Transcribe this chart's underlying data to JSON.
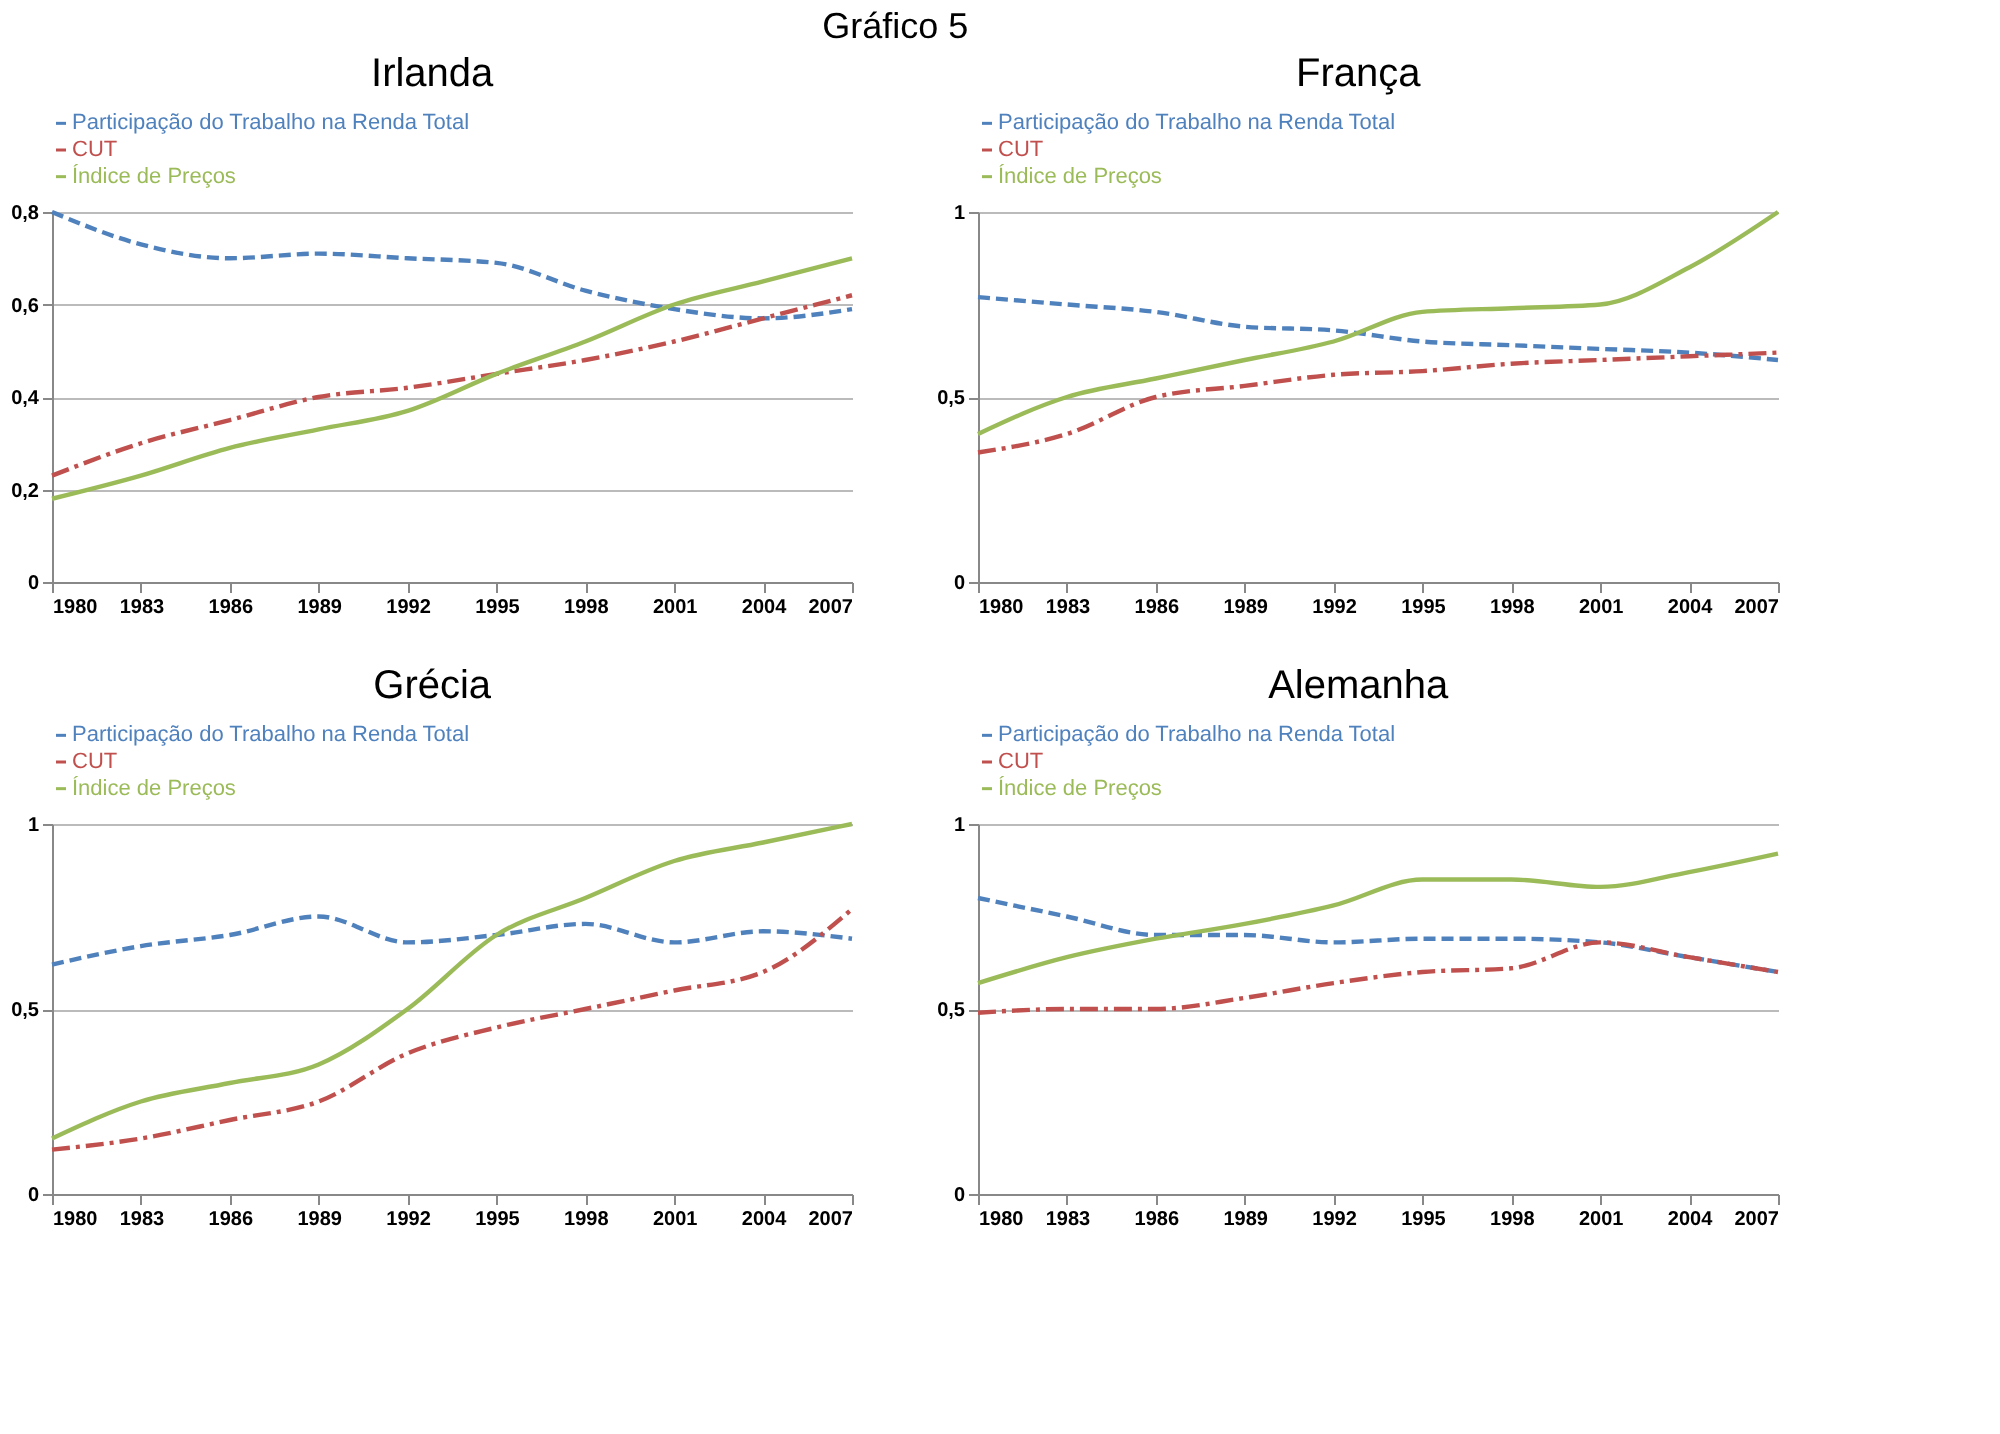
{
  "chart_data": [
    {
      "type": "line",
      "title": "Irlanda",
      "annotations": [
        "Gráfico 5"
      ],
      "x": [
        1980,
        1983,
        1986,
        1989,
        1992,
        1995,
        1998,
        2001,
        2004,
        2007
      ],
      "xlim": [
        1980,
        2007
      ],
      "xticks": [
        1980,
        1983,
        1986,
        1989,
        1992,
        1995,
        1998,
        2001,
        2004,
        2007
      ],
      "ylim": [
        0,
        0.8
      ],
      "yticks": [
        {
          "value": 0,
          "label": "0"
        },
        {
          "value": 0.2,
          "label": "0,2"
        },
        {
          "value": 0.4,
          "label": "0,4"
        },
        {
          "value": 0.6,
          "label": "0,6"
        },
        {
          "value": 0.8,
          "label": "0,8"
        }
      ],
      "grid": "y",
      "legend": "top left",
      "series": [
        {
          "name": "Participação do Trabalho na Renda Total",
          "color": "#4f81bd",
          "line_style": "dashed",
          "values": [
            0.8,
            0.73,
            0.7,
            0.71,
            0.7,
            0.69,
            0.63,
            0.59,
            0.57,
            0.59
          ]
        },
        {
          "name": "CUT",
          "color": "#c0504d",
          "line_style": "dashdot",
          "values": [
            0.23,
            0.3,
            0.35,
            0.4,
            0.42,
            0.45,
            0.48,
            0.52,
            0.57,
            0.62
          ]
        },
        {
          "name": "Índice de Preços",
          "color": "#9bbb59",
          "line_style": "solid",
          "values": [
            0.18,
            0.23,
            0.29,
            0.33,
            0.37,
            0.45,
            0.52,
            0.6,
            0.65,
            0.7
          ]
        }
      ]
    },
    {
      "type": "line",
      "title": "França",
      "x": [
        1980,
        1983,
        1986,
        1989,
        1992,
        1995,
        1998,
        2001,
        2004,
        2007
      ],
      "xlim": [
        1980,
        2007
      ],
      "xticks": [
        1980,
        1983,
        1986,
        1989,
        1992,
        1995,
        1998,
        2001,
        2004,
        2007
      ],
      "ylim": [
        0,
        1
      ],
      "yticks": [
        {
          "value": 0,
          "label": "0"
        },
        {
          "value": 0.5,
          "label": "0,5"
        },
        {
          "value": 1,
          "label": "1"
        }
      ],
      "grid": "y",
      "legend": "top left",
      "series": [
        {
          "name": "Participação do Trabalho na Renda Total",
          "color": "#4f81bd",
          "line_style": "dashed",
          "values": [
            0.77,
            0.75,
            0.73,
            0.69,
            0.68,
            0.65,
            0.64,
            0.63,
            0.62,
            0.6
          ]
        },
        {
          "name": "CUT",
          "color": "#c0504d",
          "line_style": "dashdot",
          "values": [
            0.35,
            0.4,
            0.5,
            0.53,
            0.56,
            0.57,
            0.59,
            0.6,
            0.61,
            0.62
          ]
        },
        {
          "name": "Índice de Preços",
          "color": "#9bbb59",
          "line_style": "solid",
          "values": [
            0.4,
            0.5,
            0.55,
            0.6,
            0.65,
            0.73,
            0.74,
            0.75,
            0.85,
            1.0
          ]
        }
      ]
    },
    {
      "type": "line",
      "title": "Grécia",
      "x": [
        1980,
        1983,
        1986,
        1989,
        1992,
        1995,
        1998,
        2001,
        2004,
        2007
      ],
      "xlim": [
        1980,
        2007
      ],
      "xticks": [
        1980,
        1983,
        1986,
        1989,
        1992,
        1995,
        1998,
        2001,
        2004,
        2007
      ],
      "ylim": [
        0,
        1
      ],
      "yticks": [
        {
          "value": 0,
          "label": "0"
        },
        {
          "value": 0.5,
          "label": "0,5"
        },
        {
          "value": 1,
          "label": "1"
        }
      ],
      "grid": "y",
      "legend": "top left",
      "series": [
        {
          "name": "Participação do Trabalho na Renda Total",
          "color": "#4f81bd",
          "line_style": "dashed",
          "values": [
            0.62,
            0.67,
            0.7,
            0.75,
            0.68,
            0.7,
            0.73,
            0.68,
            0.71,
            0.69
          ]
        },
        {
          "name": "CUT",
          "color": "#c0504d",
          "line_style": "dashdot",
          "values": [
            0.12,
            0.15,
            0.2,
            0.25,
            0.38,
            0.45,
            0.5,
            0.55,
            0.6,
            0.77
          ]
        },
        {
          "name": "Índice de Preços",
          "color": "#9bbb59",
          "line_style": "solid",
          "values": [
            0.15,
            0.25,
            0.3,
            0.35,
            0.5,
            0.7,
            0.8,
            0.9,
            0.95,
            1.0
          ]
        }
      ]
    },
    {
      "type": "line",
      "title": "Alemanha",
      "x": [
        1980,
        1983,
        1986,
        1989,
        1992,
        1995,
        1998,
        2001,
        2004,
        2007
      ],
      "xlim": [
        1980,
        2007
      ],
      "xticks": [
        1980,
        1983,
        1986,
        1989,
        1992,
        1995,
        1998,
        2001,
        2004,
        2007
      ],
      "ylim": [
        0,
        1
      ],
      "yticks": [
        {
          "value": 0,
          "label": "0"
        },
        {
          "value": 0.5,
          "label": "0,5"
        },
        {
          "value": 1,
          "label": "1"
        }
      ],
      "grid": "y",
      "legend": "top left",
      "series": [
        {
          "name": "Participação do Trabalho na Renda Total",
          "color": "#4f81bd",
          "line_style": "dashed",
          "values": [
            0.8,
            0.75,
            0.7,
            0.7,
            0.68,
            0.69,
            0.69,
            0.68,
            0.64,
            0.6
          ]
        },
        {
          "name": "CUT",
          "color": "#c0504d",
          "line_style": "dashdot",
          "values": [
            0.49,
            0.5,
            0.5,
            0.53,
            0.57,
            0.6,
            0.61,
            0.68,
            0.64,
            0.6
          ]
        },
        {
          "name": "Índice de Preços",
          "color": "#9bbb59",
          "line_style": "solid",
          "values": [
            0.57,
            0.64,
            0.69,
            0.73,
            0.78,
            0.85,
            0.85,
            0.83,
            0.87,
            0.92
          ]
        }
      ]
    }
  ]
}
